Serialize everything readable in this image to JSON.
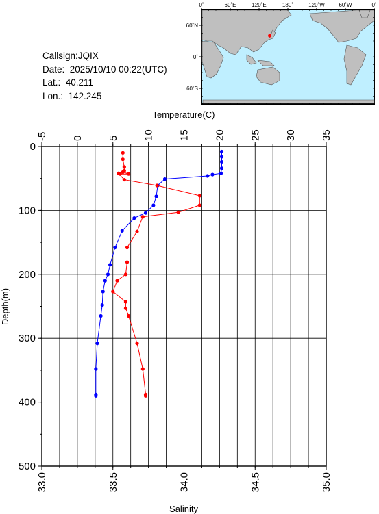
{
  "info": {
    "callsign": "Callsign:JQIX",
    "date": "Date:  2025/10/10 00:22(UTC)",
    "lat": "Lat.:  40.211",
    "lon": "Lon.:  142.245"
  },
  "map": {
    "top_ticks": [
      "0˚",
      "60˚E",
      "120˚E",
      "180˚",
      "120˚W",
      "60˚W",
      "0˚"
    ],
    "left_ticks": [
      "60˚N",
      "0˚",
      "60˚S"
    ],
    "land_color": "#bfbfbf",
    "ocean_color": "#bfefff",
    "marker_color": "#ff0000",
    "station": {
      "lat": 40.211,
      "lon": 142.245
    }
  },
  "chart_data": {
    "type": "line",
    "title": "",
    "xlabel_top": "Temperature(C)",
    "xlabel_bottom": "Salinity",
    "ylabel": "Depth(m)",
    "temperature_range": [
      -5,
      35
    ],
    "temperature_ticks": [
      "-5",
      "0",
      "5",
      "10",
      "15",
      "20",
      "25",
      "30",
      "35"
    ],
    "salinity_range": [
      33.0,
      35.0
    ],
    "salinity_ticks": [
      "33.0",
      "33.5",
      "34.0",
      "34.5",
      "35.0"
    ],
    "depth_range": [
      0,
      500
    ],
    "depth_ticks": [
      "0",
      "100",
      "200",
      "300",
      "400",
      "500"
    ],
    "grid": true,
    "series": [
      {
        "name": "Temperature",
        "axis": "top",
        "color": "#0000ff",
        "points": [
          {
            "x": 20.3,
            "depth": 8
          },
          {
            "x": 20.3,
            "depth": 16
          },
          {
            "x": 20.3,
            "depth": 24
          },
          {
            "x": 20.3,
            "depth": 34
          },
          {
            "x": 20.2,
            "depth": 42
          },
          {
            "x": 19.0,
            "depth": 44
          },
          {
            "x": 18.3,
            "depth": 46
          },
          {
            "x": 12.3,
            "depth": 51
          },
          {
            "x": 11.3,
            "depth": 61
          },
          {
            "x": 11.1,
            "depth": 78
          },
          {
            "x": 10.7,
            "depth": 92
          },
          {
            "x": 9.6,
            "depth": 104
          },
          {
            "x": 8.0,
            "depth": 112
          },
          {
            "x": 6.3,
            "depth": 132
          },
          {
            "x": 5.3,
            "depth": 158
          },
          {
            "x": 4.6,
            "depth": 185
          },
          {
            "x": 4.3,
            "depth": 200
          },
          {
            "x": 3.9,
            "depth": 210
          },
          {
            "x": 3.6,
            "depth": 227
          },
          {
            "x": 3.5,
            "depth": 248
          },
          {
            "x": 3.3,
            "depth": 265
          },
          {
            "x": 2.8,
            "depth": 308
          },
          {
            "x": 2.6,
            "depth": 348
          },
          {
            "x": 2.6,
            "depth": 388
          },
          {
            "x": 2.6,
            "depth": 390
          }
        ]
      },
      {
        "name": "Salinity",
        "axis": "bottom",
        "color": "#ff0000",
        "points": [
          {
            "x": 33.57,
            "depth": 10
          },
          {
            "x": 33.57,
            "depth": 20
          },
          {
            "x": 33.58,
            "depth": 32
          },
          {
            "x": 33.58,
            "depth": 38
          },
          {
            "x": 33.57,
            "depth": 40
          },
          {
            "x": 33.61,
            "depth": 43
          },
          {
            "x": 33.55,
            "depth": 43
          },
          {
            "x": 33.54,
            "depth": 42
          },
          {
            "x": 33.58,
            "depth": 52
          },
          {
            "x": 33.81,
            "depth": 61
          },
          {
            "x": 34.11,
            "depth": 77
          },
          {
            "x": 34.11,
            "depth": 92
          },
          {
            "x": 33.96,
            "depth": 103
          },
          {
            "x": 33.71,
            "depth": 110
          },
          {
            "x": 33.67,
            "depth": 133
          },
          {
            "x": 33.6,
            "depth": 158
          },
          {
            "x": 33.6,
            "depth": 181
          },
          {
            "x": 33.59,
            "depth": 200
          },
          {
            "x": 33.53,
            "depth": 210
          },
          {
            "x": 33.5,
            "depth": 227
          },
          {
            "x": 33.59,
            "depth": 243
          },
          {
            "x": 33.59,
            "depth": 253
          },
          {
            "x": 33.61,
            "depth": 265
          },
          {
            "x": 33.67,
            "depth": 308
          },
          {
            "x": 33.71,
            "depth": 348
          },
          {
            "x": 33.73,
            "depth": 388
          },
          {
            "x": 33.73,
            "depth": 390
          }
        ]
      }
    ]
  }
}
